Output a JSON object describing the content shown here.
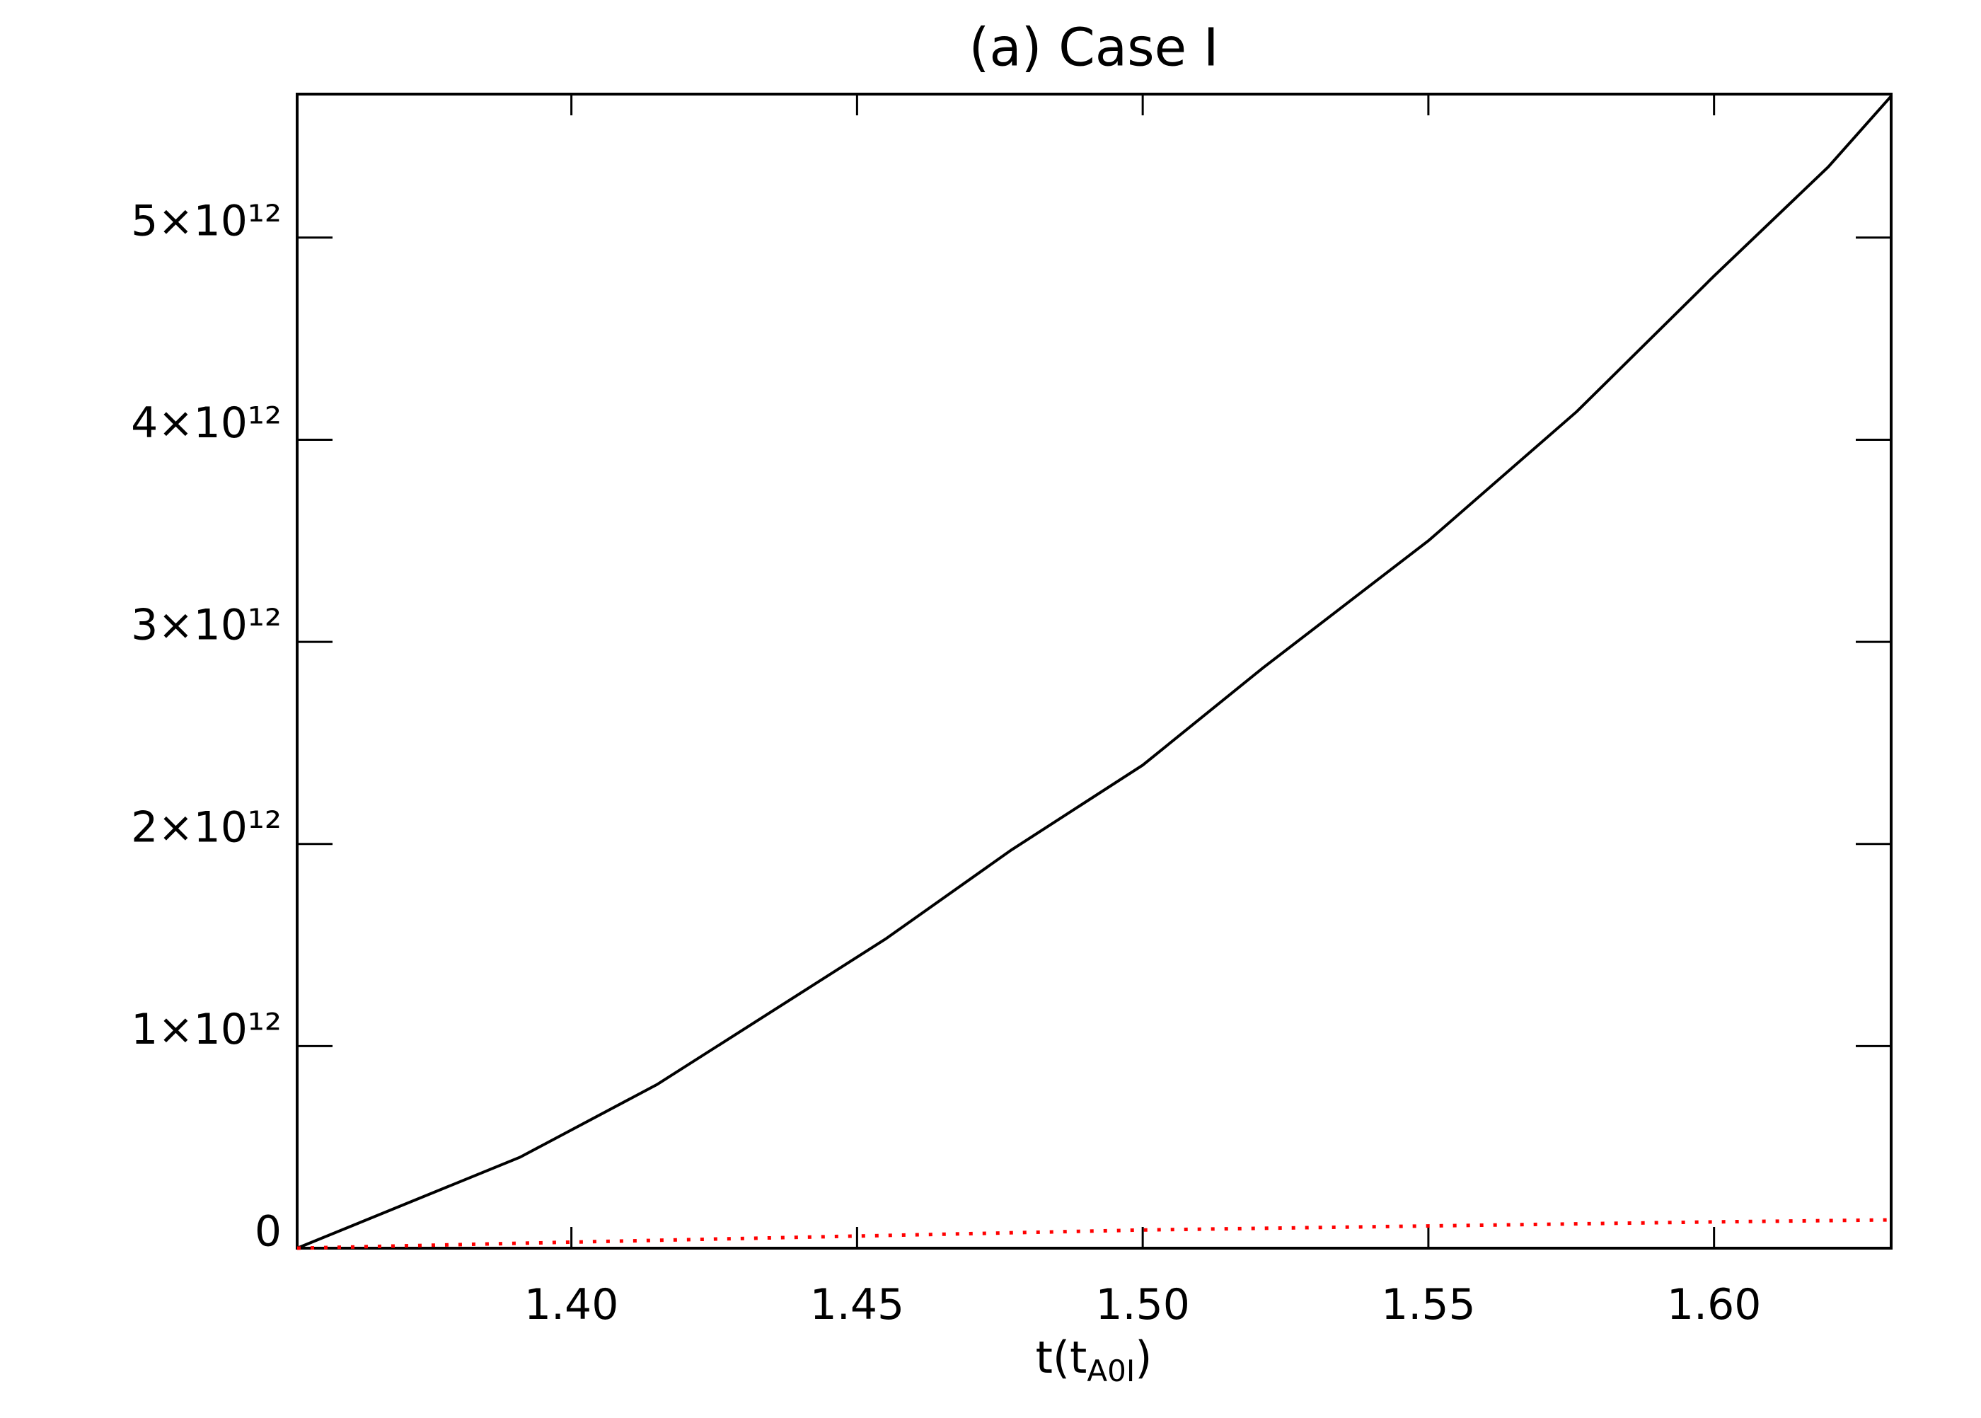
{
  "chart_data": {
    "type": "line",
    "title": "(a) Case I",
    "x_label": {
      "main": "t(t",
      "sub": "A0I",
      "close": ")"
    },
    "xlim": [
      1.352,
      1.631
    ],
    "xticks": [
      {
        "value": 1.4,
        "label": "1.40"
      },
      {
        "value": 1.45,
        "label": "1.45"
      },
      {
        "value": 1.5,
        "label": "1.50"
      },
      {
        "value": 1.55,
        "label": "1.55"
      },
      {
        "value": 1.6,
        "label": "1.60"
      }
    ],
    "ylim": [
      0,
      5710000000000
    ],
    "yticks": [
      0,
      {
        "value": 1000000000000,
        "label": "1×10¹²"
      },
      {
        "value": 2000000000000,
        "label": "2×10¹²"
      },
      {
        "value": 3000000000000,
        "label": "3×10¹²"
      },
      {
        "value": 4000000000000,
        "label": "4×10¹²"
      },
      {
        "value": 5000000000000,
        "label": "5×10¹²"
      }
    ],
    "series": [
      {
        "color": "#000000",
        "style": "solid",
        "x": [
          1.352,
          1.391,
          1.415,
          1.455,
          1.477,
          1.5,
          1.521,
          1.55,
          1.576,
          1.6,
          1.62,
          1.631
        ],
        "values": [
          0,
          450000000000,
          810000000000,
          1530000000000,
          1970000000000,
          2390000000000,
          2870000000000,
          3500000000000,
          4140000000000,
          4810000000000,
          5350000000000,
          5700000000000
        ]
      },
      {
        "color": "#ff0000",
        "style": "dotted",
        "x": [
          1.352,
          1.4,
          1.45,
          1.5,
          1.55,
          1.6,
          1.631
        ],
        "values": [
          0,
          30000000000,
          60000000000,
          90000000000,
          110000000000,
          130000000000,
          140000000000
        ]
      }
    ]
  }
}
